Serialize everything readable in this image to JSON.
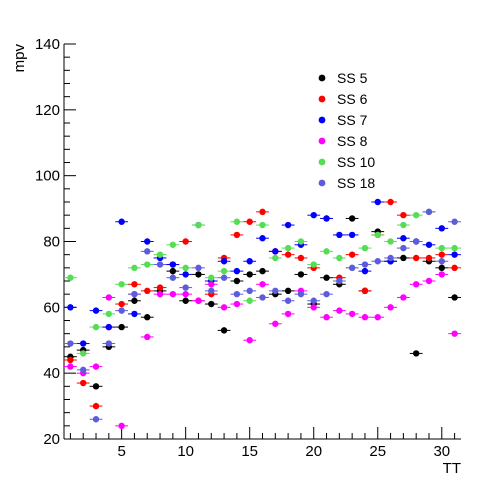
{
  "chart_data": {
    "type": "scatter",
    "title": "",
    "xlabel": "TT",
    "ylabel": "mpv",
    "xlim": [
      0.5,
      31.5
    ],
    "ylim": [
      20,
      140
    ],
    "xticks": [
      "5",
      "10",
      "15",
      "20",
      "25",
      "30"
    ],
    "yticks": [
      "20",
      "40",
      "60",
      "80",
      "100",
      "120",
      "140"
    ],
    "legend_position": "top-right",
    "grid": false,
    "series": [
      {
        "name": "SS 5",
        "color": "#000000",
        "points": [
          [
            1,
            45
          ],
          [
            2,
            47
          ],
          [
            3,
            36
          ],
          [
            4,
            48
          ],
          [
            5,
            54
          ],
          [
            6,
            62
          ],
          [
            7,
            57
          ],
          [
            8,
            65
          ],
          [
            9,
            71
          ],
          [
            10,
            62
          ],
          [
            11,
            70
          ],
          [
            12,
            61
          ],
          [
            13,
            53
          ],
          [
            14,
            68
          ],
          [
            15,
            70
          ],
          [
            16,
            71
          ],
          [
            17,
            64
          ],
          [
            18,
            65
          ],
          [
            19,
            70
          ],
          [
            20,
            61
          ],
          [
            21,
            69
          ],
          [
            22,
            67
          ],
          [
            23,
            87
          ],
          [
            24,
            65
          ],
          [
            25,
            83
          ],
          [
            26,
            74
          ],
          [
            27,
            75
          ],
          [
            28,
            46
          ],
          [
            29,
            74
          ],
          [
            30,
            72
          ],
          [
            31,
            63
          ]
        ]
      },
      {
        "name": "SS 6",
        "color": "#ff0000",
        "points": [
          [
            1,
            44
          ],
          [
            2,
            37
          ],
          [
            3,
            30
          ],
          [
            4,
            54
          ],
          [
            5,
            61
          ],
          [
            6,
            67
          ],
          [
            7,
            65
          ],
          [
            8,
            66
          ],
          [
            9,
            73
          ],
          [
            10,
            80
          ],
          [
            11,
            62
          ],
          [
            12,
            64
          ],
          [
            13,
            75
          ],
          [
            14,
            82
          ],
          [
            15,
            86
          ],
          [
            16,
            89
          ],
          [
            17,
            77
          ],
          [
            18,
            76
          ],
          [
            19,
            75
          ],
          [
            20,
            72
          ],
          [
            21,
            87
          ],
          [
            22,
            69
          ],
          [
            23,
            76
          ],
          [
            24,
            65
          ],
          [
            25,
            82
          ],
          [
            26,
            92
          ],
          [
            27,
            88
          ],
          [
            28,
            75
          ],
          [
            29,
            75
          ],
          [
            30,
            76
          ],
          [
            31,
            72
          ]
        ]
      },
      {
        "name": "SS 7",
        "color": "#0000ff",
        "points": [
          [
            1,
            60
          ],
          [
            2,
            49
          ],
          [
            3,
            59
          ],
          [
            4,
            54
          ],
          [
            5,
            86
          ],
          [
            6,
            58
          ],
          [
            7,
            80
          ],
          [
            8,
            75
          ],
          [
            9,
            73
          ],
          [
            10,
            70
          ],
          [
            11,
            85
          ],
          [
            12,
            68
          ],
          [
            13,
            74
          ],
          [
            14,
            71
          ],
          [
            15,
            74
          ],
          [
            16,
            81
          ],
          [
            17,
            77
          ],
          [
            18,
            85
          ],
          [
            19,
            79
          ],
          [
            20,
            88
          ],
          [
            21,
            87
          ],
          [
            22,
            82
          ],
          [
            23,
            82
          ],
          [
            24,
            71
          ],
          [
            25,
            92
          ],
          [
            26,
            74
          ],
          [
            27,
            81
          ],
          [
            28,
            80
          ],
          [
            29,
            79
          ],
          [
            30,
            84
          ],
          [
            31,
            76
          ]
        ]
      },
      {
        "name": "SS 8",
        "color": "#ff00ff",
        "points": [
          [
            1,
            42
          ],
          [
            2,
            40
          ],
          [
            3,
            42
          ],
          [
            4,
            63
          ],
          [
            5,
            24
          ],
          [
            6,
            64
          ],
          [
            7,
            51
          ],
          [
            8,
            64
          ],
          [
            9,
            64
          ],
          [
            10,
            64
          ],
          [
            11,
            62
          ],
          [
            12,
            67
          ],
          [
            13,
            60
          ],
          [
            14,
            61
          ],
          [
            15,
            50
          ],
          [
            16,
            67
          ],
          [
            17,
            55
          ],
          [
            18,
            58
          ],
          [
            19,
            65
          ],
          [
            20,
            60
          ],
          [
            21,
            57
          ],
          [
            22,
            59
          ],
          [
            23,
            58
          ],
          [
            24,
            57
          ],
          [
            25,
            57
          ],
          [
            26,
            60
          ],
          [
            27,
            63
          ],
          [
            28,
            67
          ],
          [
            29,
            68
          ],
          [
            30,
            70
          ],
          [
            31,
            52
          ]
        ]
      },
      {
        "name": "SS 10",
        "color": "#55dd55",
        "points": [
          [
            1,
            69
          ],
          [
            2,
            46
          ],
          [
            3,
            54
          ],
          [
            4,
            58
          ],
          [
            5,
            67
          ],
          [
            6,
            72
          ],
          [
            7,
            73
          ],
          [
            8,
            76
          ],
          [
            9,
            79
          ],
          [
            10,
            72
          ],
          [
            11,
            85
          ],
          [
            12,
            69
          ],
          [
            13,
            71
          ],
          [
            14,
            86
          ],
          [
            15,
            62
          ],
          [
            16,
            85
          ],
          [
            17,
            75
          ],
          [
            18,
            78
          ],
          [
            19,
            80
          ],
          [
            20,
            73
          ],
          [
            21,
            77
          ],
          [
            22,
            75
          ],
          [
            23,
            72
          ],
          [
            24,
            78
          ],
          [
            25,
            82
          ],
          [
            26,
            80
          ],
          [
            27,
            85
          ],
          [
            28,
            88
          ],
          [
            29,
            89
          ],
          [
            30,
            78
          ],
          [
            31,
            78
          ]
        ]
      },
      {
        "name": "SS 18",
        "color": "#5c5cdc",
        "points": [
          [
            1,
            49
          ],
          [
            2,
            41
          ],
          [
            3,
            26
          ],
          [
            4,
            49
          ],
          [
            5,
            59
          ],
          [
            6,
            64
          ],
          [
            7,
            77
          ],
          [
            8,
            73
          ],
          [
            9,
            69
          ],
          [
            10,
            66
          ],
          [
            11,
            72
          ],
          [
            12,
            65
          ],
          [
            13,
            69
          ],
          [
            14,
            64
          ],
          [
            15,
            65
          ],
          [
            16,
            63
          ],
          [
            17,
            65
          ],
          [
            18,
            62
          ],
          [
            19,
            64
          ],
          [
            20,
            62
          ],
          [
            21,
            64
          ],
          [
            22,
            68
          ],
          [
            23,
            72
          ],
          [
            24,
            73
          ],
          [
            25,
            74
          ],
          [
            26,
            75
          ],
          [
            27,
            78
          ],
          [
            28,
            80
          ],
          [
            29,
            89
          ],
          [
            30,
            74
          ],
          [
            31,
            86
          ]
        ]
      }
    ]
  }
}
